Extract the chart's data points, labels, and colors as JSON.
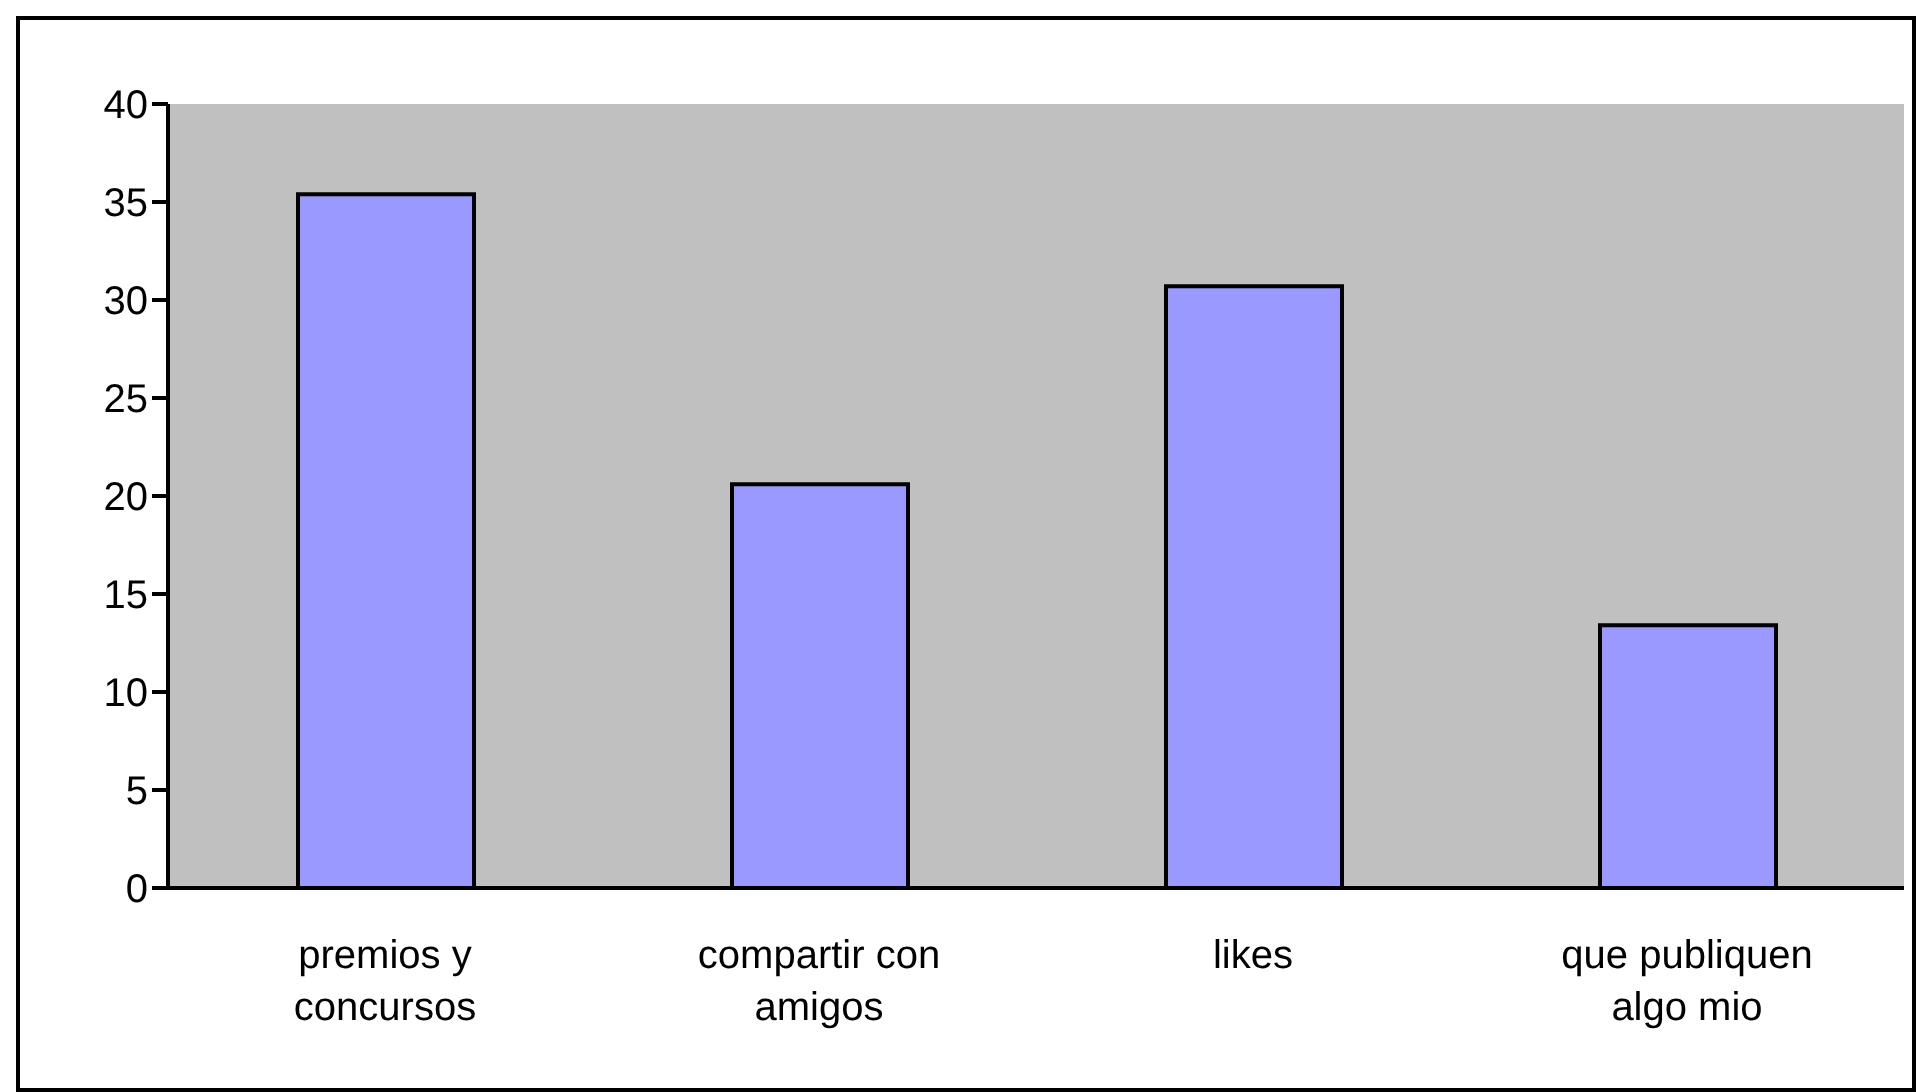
{
  "chart_data": {
    "type": "bar",
    "categories": [
      "premios y concursos",
      "compartir con amigos",
      "likes",
      "que publiquen algo mio"
    ],
    "values": [
      35.4,
      20.6,
      30.7,
      13.4
    ],
    "color": "#9999ff",
    "ylim": [
      0,
      40
    ],
    "yticks": [
      0,
      5,
      10,
      15,
      20,
      25,
      30,
      35,
      40
    ],
    "grid": false,
    "legend": false
  }
}
